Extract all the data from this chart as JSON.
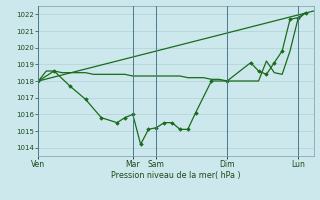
{
  "bg_color": "#cce8ec",
  "grid_color": "#aaccd4",
  "line_color": "#1a6b1a",
  "marker_color": "#1a6b1a",
  "xlabel": "Pression niveau de la mer( hPa )",
  "ylim": [
    1013.5,
    1022.5
  ],
  "yticks": [
    1014,
    1015,
    1016,
    1017,
    1018,
    1019,
    1020,
    1021,
    1022
  ],
  "xtick_labels": [
    "Ven",
    "Mar",
    "Sam",
    "Dim",
    "Lun"
  ],
  "xtick_positions": [
    0,
    12,
    15,
    24,
    33
  ],
  "xmax": 35,
  "line_trend_x": [
    0,
    35
  ],
  "line_trend_y": [
    1018.0,
    1022.2
  ],
  "line_flat_x": [
    0,
    1,
    2,
    3,
    4,
    5,
    6,
    7,
    8,
    9,
    10,
    11,
    12,
    13,
    14,
    15,
    16,
    17,
    18,
    19,
    20,
    21,
    22,
    23,
    24,
    27,
    28,
    29,
    30,
    31,
    32,
    33,
    34
  ],
  "line_flat_y": [
    1018.0,
    1018.6,
    1018.6,
    1018.5,
    1018.5,
    1018.5,
    1018.5,
    1018.4,
    1018.4,
    1018.4,
    1018.4,
    1018.4,
    1018.3,
    1018.3,
    1018.3,
    1018.3,
    1018.3,
    1018.3,
    1018.3,
    1018.2,
    1018.2,
    1018.2,
    1018.1,
    1018.1,
    1018.0,
    1018.0,
    1018.0,
    1019.2,
    1018.5,
    1018.4,
    1019.8,
    1021.7,
    1022.1
  ],
  "line_wavy_x": [
    0,
    2,
    4,
    6,
    8,
    10,
    11,
    12,
    13,
    14,
    15,
    16,
    17,
    18,
    19,
    20,
    22,
    24,
    27,
    28,
    29,
    30,
    31,
    32,
    33,
    34
  ],
  "line_wavy_y": [
    1018.0,
    1018.6,
    1017.7,
    1016.9,
    1015.8,
    1015.5,
    1015.8,
    1016.0,
    1014.2,
    1015.1,
    1015.2,
    1015.5,
    1015.5,
    1015.1,
    1015.1,
    1016.1,
    1018.0,
    1018.0,
    1019.1,
    1018.6,
    1018.4,
    1019.1,
    1019.8,
    1021.7,
    1021.8,
    1022.1
  ]
}
